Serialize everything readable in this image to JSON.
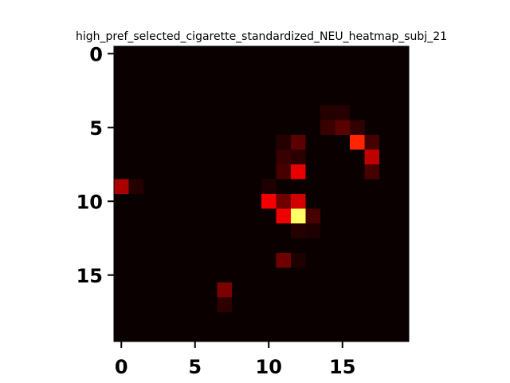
{
  "chart_data": {
    "type": "heatmap",
    "title": "high_pref_selected_cigarette_standardized_NEU_heatmap_subj_21",
    "xlabel": "",
    "ylabel": "",
    "rows": 20,
    "cols": 20,
    "x_ticks": [
      0,
      5,
      10,
      15
    ],
    "y_ticks": [
      0,
      5,
      10,
      15
    ],
    "xlim": [
      -0.5,
      19.5
    ],
    "ylim": [
      19.5,
      -0.5
    ],
    "colormap": "hot",
    "background_value": 0.0,
    "cells": [
      {
        "row": 4,
        "col": 14,
        "value": 0.04
      },
      {
        "row": 4,
        "col": 15,
        "value": 0.04
      },
      {
        "row": 5,
        "col": 14,
        "value": 0.07
      },
      {
        "row": 5,
        "col": 15,
        "value": 0.12
      },
      {
        "row": 5,
        "col": 16,
        "value": 0.06
      },
      {
        "row": 6,
        "col": 11,
        "value": 0.04
      },
      {
        "row": 6,
        "col": 12,
        "value": 0.12
      },
      {
        "row": 6,
        "col": 16,
        "value": 0.42
      },
      {
        "row": 6,
        "col": 17,
        "value": 0.09
      },
      {
        "row": 7,
        "col": 11,
        "value": 0.07
      },
      {
        "row": 7,
        "col": 12,
        "value": 0.05
      },
      {
        "row": 7,
        "col": 17,
        "value": 0.27
      },
      {
        "row": 8,
        "col": 11,
        "value": 0.09
      },
      {
        "row": 8,
        "col": 12,
        "value": 0.33
      },
      {
        "row": 8,
        "col": 17,
        "value": 0.09
      },
      {
        "row": 9,
        "col": 0,
        "value": 0.24
      },
      {
        "row": 9,
        "col": 1,
        "value": 0.04
      },
      {
        "row": 9,
        "col": 10,
        "value": 0.03
      },
      {
        "row": 10,
        "col": 10,
        "value": 0.35
      },
      {
        "row": 10,
        "col": 11,
        "value": 0.15
      },
      {
        "row": 10,
        "col": 12,
        "value": 0.3
      },
      {
        "row": 11,
        "col": 11,
        "value": 0.34
      },
      {
        "row": 11,
        "col": 12,
        "value": 0.85
      },
      {
        "row": 11,
        "col": 13,
        "value": 0.09
      },
      {
        "row": 12,
        "col": 12,
        "value": 0.04
      },
      {
        "row": 12,
        "col": 13,
        "value": 0.03
      },
      {
        "row": 14,
        "col": 11,
        "value": 0.15
      },
      {
        "row": 14,
        "col": 12,
        "value": 0.03
      },
      {
        "row": 16,
        "col": 7,
        "value": 0.17
      },
      {
        "row": 17,
        "col": 7,
        "value": 0.05
      }
    ]
  }
}
